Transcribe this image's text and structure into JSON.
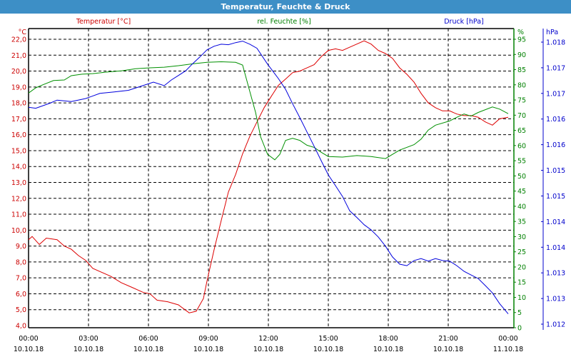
{
  "chart_data": {
    "type": "line",
    "title": "Temperatur, Feuchte & Druck",
    "x_range_hours": [
      0,
      24
    ],
    "x_ticks": [
      {
        "h": 0,
        "time": "00:00",
        "date": "10.10.18"
      },
      {
        "h": 3,
        "time": "03:00",
        "date": "10.10.18"
      },
      {
        "h": 6,
        "time": "06:00",
        "date": "10.10.18"
      },
      {
        "h": 9,
        "time": "09:00",
        "date": "10.10.18"
      },
      {
        "h": 12,
        "time": "12:00",
        "date": "10.10.18"
      },
      {
        "h": 15,
        "time": "15:00",
        "date": "10.10.18"
      },
      {
        "h": 18,
        "time": "18:00",
        "date": "10.10.18"
      },
      {
        "h": 21,
        "time": "21:00",
        "date": "10.10.18"
      },
      {
        "h": 24,
        "time": "00:00",
        "date": "11.10.18"
      }
    ],
    "grid": true,
    "axes": {
      "temp": {
        "label": "Temperatur [°C]",
        "unit": "°C",
        "color": "#cc0000",
        "range": [
          4,
          22
        ],
        "ticks": [
          "4,0",
          "5,0",
          "6,0",
          "7,0",
          "8,0",
          "9,0",
          "10,0",
          "11,0",
          "12,0",
          "13,0",
          "14,0",
          "15,0",
          "16,0",
          "17,0",
          "18,0",
          "19,0",
          "20,0",
          "21,0",
          "22,0"
        ]
      },
      "hum": {
        "label": "rel. Feuchte [%]",
        "unit": "%",
        "color": "#008000",
        "range": [
          0,
          95
        ],
        "ticks": [
          "0",
          "5",
          "10",
          "15",
          "20",
          "25",
          "30",
          "35",
          "40",
          "45",
          "50",
          "55",
          "60",
          "65",
          "70",
          "75",
          "80",
          "85",
          "90",
          "95"
        ]
      },
      "press": {
        "label": "Druck [hPa]",
        "unit": "hPa",
        "color": "#0000cc",
        "range": [
          1012,
          1017.5
        ],
        "ticks": [
          "1.012",
          "1.013",
          "1.013",
          "1.014",
          "1.014",
          "1.015",
          "1.015",
          "1.016",
          "1.016",
          "1.017",
          "1.017",
          "1.018"
        ]
      }
    },
    "series": [
      {
        "name": "Temperatur",
        "axis": "temp",
        "color": "#dd0000",
        "points": [
          [
            0,
            9.4
          ],
          [
            0.18,
            9.6
          ],
          [
            0.54,
            9.1
          ],
          [
            0.89,
            9.5
          ],
          [
            1.43,
            9.4
          ],
          [
            1.79,
            9.0
          ],
          [
            2.14,
            8.8
          ],
          [
            2.5,
            8.4
          ],
          [
            2.86,
            8.1
          ],
          [
            3.21,
            7.6
          ],
          [
            3.57,
            7.4
          ],
          [
            4.11,
            7.1
          ],
          [
            4.64,
            6.7
          ],
          [
            5.18,
            6.4
          ],
          [
            5.71,
            6.1
          ],
          [
            6.07,
            6.0
          ],
          [
            6.43,
            5.6
          ],
          [
            6.96,
            5.5
          ],
          [
            7.5,
            5.3
          ],
          [
            8.04,
            4.8
          ],
          [
            8.39,
            4.9
          ],
          [
            8.75,
            5.7
          ],
          [
            8.93,
            6.8
          ],
          [
            9.29,
            8.8
          ],
          [
            9.64,
            10.6
          ],
          [
            10.0,
            12.4
          ],
          [
            10.36,
            13.5
          ],
          [
            10.71,
            14.8
          ],
          [
            11.07,
            15.9
          ],
          [
            11.43,
            16.8
          ],
          [
            11.79,
            17.7
          ],
          [
            12.14,
            18.4
          ],
          [
            12.5,
            19.1
          ],
          [
            12.86,
            19.5
          ],
          [
            13.21,
            19.9
          ],
          [
            13.57,
            20.0
          ],
          [
            13.93,
            20.2
          ],
          [
            14.29,
            20.4
          ],
          [
            14.64,
            20.9
          ],
          [
            15.0,
            21.3
          ],
          [
            15.36,
            21.4
          ],
          [
            15.71,
            21.3
          ],
          [
            16.07,
            21.5
          ],
          [
            16.43,
            21.7
          ],
          [
            16.79,
            21.9
          ],
          [
            17.14,
            21.7
          ],
          [
            17.5,
            21.3
          ],
          [
            17.86,
            21.1
          ],
          [
            18.21,
            20.8
          ],
          [
            18.57,
            20.2
          ],
          [
            18.93,
            19.8
          ],
          [
            19.29,
            19.3
          ],
          [
            19.64,
            18.6
          ],
          [
            20.0,
            18.0
          ],
          [
            20.36,
            17.7
          ],
          [
            20.71,
            17.5
          ],
          [
            21.07,
            17.5
          ],
          [
            21.43,
            17.3
          ],
          [
            21.79,
            17.2
          ],
          [
            22.14,
            17.2
          ],
          [
            22.5,
            17.1
          ],
          [
            22.86,
            16.8
          ],
          [
            23.21,
            16.6
          ],
          [
            23.57,
            17.0
          ],
          [
            24,
            17.1
          ]
        ]
      },
      {
        "name": "rel. Feuchte",
        "axis": "hum",
        "color": "#009000",
        "points": [
          [
            0,
            77.3
          ],
          [
            0.36,
            79
          ],
          [
            0.71,
            80
          ],
          [
            1.25,
            81.4
          ],
          [
            1.79,
            81.6
          ],
          [
            2.14,
            83
          ],
          [
            2.68,
            83.5
          ],
          [
            3.21,
            83.7
          ],
          [
            3.93,
            84.2
          ],
          [
            4.64,
            84.6
          ],
          [
            5.36,
            85.3
          ],
          [
            6.07,
            85.6
          ],
          [
            6.79,
            85.8
          ],
          [
            7.5,
            86.3
          ],
          [
            8.21,
            86.9
          ],
          [
            8.93,
            87.4
          ],
          [
            9.64,
            87.6
          ],
          [
            10.36,
            87.4
          ],
          [
            10.71,
            86.5
          ],
          [
            11.07,
            77.8
          ],
          [
            11.36,
            70.9
          ],
          [
            11.61,
            62.9
          ],
          [
            11.96,
            57.1
          ],
          [
            12.32,
            55.3
          ],
          [
            12.57,
            57.1
          ],
          [
            12.86,
            61.7
          ],
          [
            13.21,
            62.4
          ],
          [
            13.57,
            61.7
          ],
          [
            13.93,
            60.1
          ],
          [
            14.29,
            59.4
          ],
          [
            14.64,
            57.8
          ],
          [
            15.0,
            56.4
          ],
          [
            15.71,
            56.2
          ],
          [
            16.43,
            56.7
          ],
          [
            17.14,
            56.4
          ],
          [
            17.86,
            55.7
          ],
          [
            18.21,
            57.1
          ],
          [
            18.57,
            58.5
          ],
          [
            19.29,
            60.3
          ],
          [
            19.64,
            62.1
          ],
          [
            20.0,
            65.1
          ],
          [
            20.36,
            66.7
          ],
          [
            21.07,
            68.1
          ],
          [
            21.43,
            69.3
          ],
          [
            21.79,
            70.4
          ],
          [
            22.14,
            69.7
          ],
          [
            22.5,
            70.9
          ],
          [
            23.21,
            72.7
          ],
          [
            23.57,
            72.0
          ],
          [
            24,
            70.5
          ]
        ]
      },
      {
        "name": "Druck",
        "axis": "press",
        "color": "#0000dd",
        "points": [
          [
            0,
            1016.23
          ],
          [
            0.36,
            1016.21
          ],
          [
            0.71,
            1016.26
          ],
          [
            1.07,
            1016.31
          ],
          [
            1.43,
            1016.37
          ],
          [
            2.14,
            1016.34
          ],
          [
            2.86,
            1016.4
          ],
          [
            3.57,
            1016.5
          ],
          [
            4.29,
            1016.53
          ],
          [
            5.0,
            1016.56
          ],
          [
            5.71,
            1016.65
          ],
          [
            6.25,
            1016.72
          ],
          [
            6.79,
            1016.65
          ],
          [
            7.14,
            1016.76
          ],
          [
            7.5,
            1016.85
          ],
          [
            7.86,
            1016.94
          ],
          [
            8.21,
            1017.08
          ],
          [
            8.57,
            1017.21
          ],
          [
            8.93,
            1017.35
          ],
          [
            9.29,
            1017.42
          ],
          [
            9.64,
            1017.46
          ],
          [
            10.0,
            1017.45
          ],
          [
            10.36,
            1017.49
          ],
          [
            10.71,
            1017.52
          ],
          [
            11.07,
            1017.46
          ],
          [
            11.43,
            1017.38
          ],
          [
            11.96,
            1017.07
          ],
          [
            12.5,
            1016.79
          ],
          [
            12.86,
            1016.58
          ],
          [
            13.21,
            1016.3
          ],
          [
            13.57,
            1016.03
          ],
          [
            13.93,
            1015.75
          ],
          [
            14.29,
            1015.47
          ],
          [
            14.64,
            1015.19
          ],
          [
            15.0,
            1014.91
          ],
          [
            15.36,
            1014.7
          ],
          [
            15.71,
            1014.49
          ],
          [
            16.07,
            1014.21
          ],
          [
            16.43,
            1014.08
          ],
          [
            16.79,
            1013.94
          ],
          [
            17.14,
            1013.84
          ],
          [
            17.5,
            1013.7
          ],
          [
            17.86,
            1013.52
          ],
          [
            18.21,
            1013.31
          ],
          [
            18.57,
            1013.17
          ],
          [
            18.93,
            1013.14
          ],
          [
            19.29,
            1013.24
          ],
          [
            19.64,
            1013.28
          ],
          [
            20.0,
            1013.23
          ],
          [
            20.36,
            1013.28
          ],
          [
            20.71,
            1013.24
          ],
          [
            21.07,
            1013.23
          ],
          [
            21.43,
            1013.14
          ],
          [
            21.79,
            1013.03
          ],
          [
            22.14,
            1012.96
          ],
          [
            22.5,
            1012.89
          ],
          [
            22.86,
            1012.75
          ],
          [
            23.21,
            1012.61
          ],
          [
            23.57,
            1012.4
          ],
          [
            24,
            1012.2
          ]
        ]
      }
    ]
  }
}
